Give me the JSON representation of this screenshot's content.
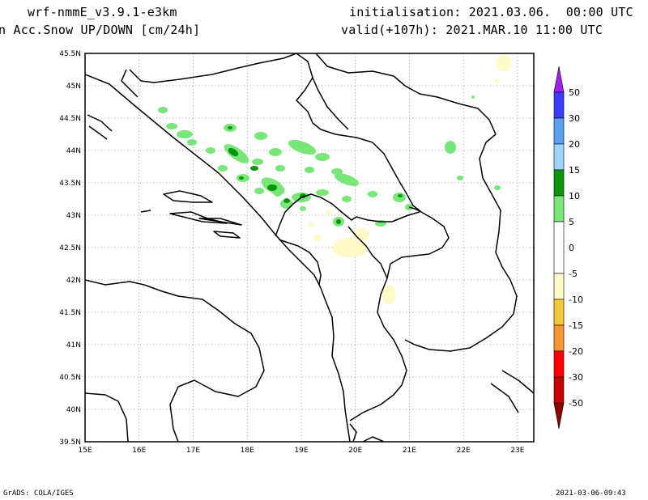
{
  "header": {
    "model": "wrf-nmmE_v3.9.1-e3km",
    "field": "n Acc.Snow UP/DOWN [cm/24h]",
    "init": "initialisation: 2021.03.06.  00:00 UTC",
    "valid": "valid(+107h): 2021.MAR.10 11:00 UTC"
  },
  "map": {
    "lat_labels": [
      "45.5N",
      "45N",
      "44.5N",
      "44N",
      "43.5N",
      "43N",
      "42.5N",
      "42N",
      "41.5N",
      "41N",
      "40.5N",
      "40N",
      "39.5N"
    ],
    "lon_labels": [
      "15E",
      "16E",
      "17E",
      "18E",
      "19E",
      "20E",
      "21E",
      "22E",
      "23E"
    ],
    "lat_range": [
      39.5,
      45.5
    ],
    "lon_range": [
      15,
      23.3
    ],
    "grid": "dotted"
  },
  "colorbar": {
    "labels": [
      "50",
      "30",
      "20",
      "15",
      "10",
      "5",
      "0",
      "-5",
      "-10",
      "-15",
      "-20",
      "-30",
      "-50"
    ],
    "colors": {
      "top_arrow": "#a020f0",
      "c50": "#3c3cff",
      "c30": "#5aa0f0",
      "c20": "#a0d2fa",
      "c15": "#0a960a",
      "c10": "#78e678",
      "zero": "#ffffff",
      "m5": "#fffac8",
      "m10": "#f5c83c",
      "m15": "#fa9632",
      "m20": "#ff0000",
      "m30": "#c80000",
      "bottom_arrow": "#8b0000"
    }
  },
  "footer": {
    "left": "GrADS: COLA/IGES",
    "right": "2021-03-06-09:43"
  }
}
